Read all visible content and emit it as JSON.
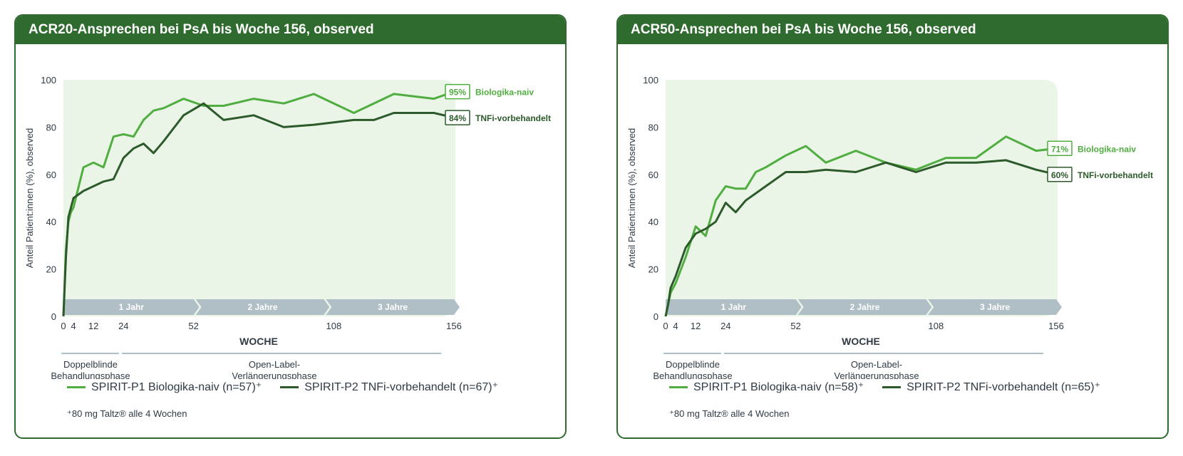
{
  "colors": {
    "header": "#2f6b2f",
    "naive": "#4fae3f",
    "tnfi": "#2d5a2a",
    "plot_bg": "#eaf5e8",
    "phase_bar": "#b0bec5",
    "axis_text": "#2f3a44"
  },
  "panels": [
    {
      "title": "ACR20-Ansprechen bei PsA bis Woche 156, observed",
      "legend": {
        "naive": "SPIRIT-P1 Biologika-naiv (n=57)⁺",
        "tnfi": "SPIRIT-P2 TNFi-vorbehandelt (n=67)⁺"
      },
      "footnote": "⁺80 mg Taltz® alle 4 Wochen"
    },
    {
      "title": "ACR50-Ansprechen bei PsA bis Woche 156, observed",
      "legend": {
        "naive": "SPIRIT-P1 Biologika-naiv (n=58)⁺",
        "tnfi": "SPIRIT-P2 TNFi-vorbehandelt (n=65)⁺"
      },
      "footnote": "⁺80 mg Taltz® alle 4 Wochen"
    }
  ],
  "chart_data": [
    {
      "type": "line",
      "title": "ACR20-Ansprechen bei PsA bis Woche 156, observed",
      "xlabel": "WOCHE",
      "ylabel": "Anteil Patient:innen (%), observed",
      "xlim": [
        0,
        156
      ],
      "ylim": [
        0,
        100
      ],
      "xticks": [
        0,
        4,
        12,
        24,
        52,
        108,
        156
      ],
      "yticks": [
        0,
        20,
        40,
        60,
        80,
        100
      ],
      "phases": [
        "1 Jahr",
        "2 Jahre",
        "3 Jahre"
      ],
      "treatment_phases": [
        "Doppelblinde Behandlungsphase",
        "Open-Label-Verlängerungsphase"
      ],
      "series": [
        {
          "name": "Biologika-naiv",
          "end_label": "95%",
          "x": [
            0,
            1,
            2,
            3,
            4,
            8,
            12,
            16,
            20,
            24,
            28,
            32,
            36,
            40,
            48,
            56,
            64,
            76,
            88,
            100,
            116,
            132,
            148,
            156
          ],
          "y": [
            0,
            28,
            40,
            44,
            46,
            63,
            65,
            63,
            76,
            77,
            76,
            83,
            87,
            88,
            92,
            89,
            89,
            92,
            90,
            94,
            86,
            94,
            92,
            95
          ]
        },
        {
          "name": "TNFi-vorbehandelt",
          "end_label": "84%",
          "x": [
            0,
            1,
            2,
            4,
            8,
            12,
            16,
            20,
            24,
            28,
            32,
            36,
            40,
            48,
            56,
            64,
            76,
            88,
            100,
            116,
            124,
            132,
            148,
            156
          ],
          "y": [
            0,
            25,
            42,
            50,
            53,
            55,
            57,
            58,
            67,
            71,
            73,
            69,
            74,
            85,
            90,
            83,
            85,
            80,
            81,
            83,
            83,
            86,
            86,
            84
          ]
        }
      ]
    },
    {
      "type": "line",
      "title": "ACR50-Ansprechen bei PsA bis Woche 156, observed",
      "xlabel": "WOCHE",
      "ylabel": "Anteil Patient:innen (%), observed",
      "xlim": [
        0,
        156
      ],
      "ylim": [
        0,
        100
      ],
      "xticks": [
        0,
        4,
        12,
        24,
        52,
        108,
        156
      ],
      "yticks": [
        0,
        20,
        40,
        60,
        80,
        100
      ],
      "phases": [
        "1 Jahr",
        "2 Jahre",
        "3 Jahre"
      ],
      "treatment_phases": [
        "Doppelblinde Behandlungsphase",
        "Open-Label-Verlängerungsphase"
      ],
      "series": [
        {
          "name": "Biologika-naiv",
          "end_label": "71%",
          "x": [
            0,
            2,
            4,
            8,
            12,
            16,
            20,
            24,
            28,
            32,
            36,
            40,
            48,
            56,
            64,
            76,
            88,
            100,
            112,
            124,
            136,
            148,
            156
          ],
          "y": [
            0,
            10,
            14,
            25,
            38,
            34,
            49,
            55,
            54,
            54,
            61,
            63,
            68,
            72,
            65,
            70,
            65,
            62,
            67,
            67,
            76,
            70,
            71
          ]
        },
        {
          "name": "TNFi-vorbehandelt",
          "end_label": "60%",
          "x": [
            0,
            1,
            2,
            4,
            8,
            12,
            16,
            20,
            24,
            28,
            32,
            36,
            40,
            48,
            56,
            64,
            76,
            88,
            100,
            112,
            124,
            136,
            148,
            156
          ],
          "y": [
            0,
            5,
            12,
            17,
            29,
            35,
            37,
            40,
            48,
            44,
            49,
            52,
            55,
            61,
            61,
            62,
            61,
            65,
            61,
            65,
            65,
            66,
            62,
            60
          ]
        }
      ]
    }
  ]
}
